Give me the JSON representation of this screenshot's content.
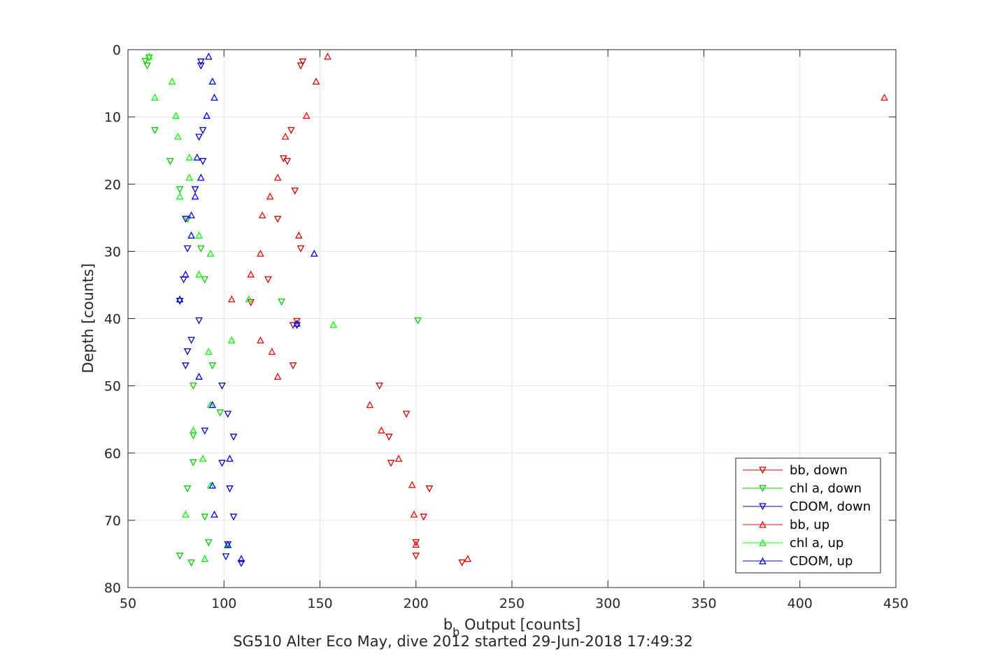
{
  "chart_data": {
    "type": "scatter",
    "xlabel": "b",
    "xlabel_sub": "b",
    "xlabel_rest": " Output [counts]",
    "ylabel": "Depth [counts]",
    "caption": "SG510 Alter Eco May, dive 2012 started 29-Jun-2018 17:49:32",
    "xlim": [
      50,
      450
    ],
    "ylim": [
      0,
      80
    ],
    "y_reversed": true,
    "xticks": [
      "50",
      "100",
      "150",
      "200",
      "250",
      "300",
      "350",
      "400",
      "450"
    ],
    "yticks": [
      "0",
      "10",
      "20",
      "30",
      "40",
      "50",
      "60",
      "70",
      "80"
    ],
    "grid": true,
    "legend_position": "bottom-right",
    "series": [
      {
        "name": "bb, down",
        "color": "#d40000",
        "marker": "triangle-down",
        "points": [
          [
            141,
            1.8
          ],
          [
            140,
            2.4
          ],
          [
            135,
            12
          ],
          [
            131,
            16.2
          ],
          [
            133,
            16.6
          ],
          [
            137,
            21
          ],
          [
            128,
            25.2
          ],
          [
            140,
            29.6
          ],
          [
            123,
            34.2
          ],
          [
            114,
            37.6
          ],
          [
            138,
            40.4
          ],
          [
            136,
            41
          ],
          [
            136,
            47
          ],
          [
            181,
            50
          ],
          [
            195,
            54.2
          ],
          [
            186,
            57.6
          ],
          [
            187,
            61.5
          ],
          [
            207,
            65.3
          ],
          [
            204,
            69.5
          ],
          [
            200,
            73.3
          ],
          [
            200,
            75.3
          ],
          [
            224,
            76.3
          ]
        ]
      },
      {
        "name": "chl a, down",
        "color": "#00cc00",
        "marker": "triangle-down",
        "points": [
          [
            61,
            1.2
          ],
          [
            59,
            1.7
          ],
          [
            60,
            2.4
          ],
          [
            64,
            12
          ],
          [
            72,
            16.6
          ],
          [
            77,
            20.8
          ],
          [
            81,
            25.2
          ],
          [
            88,
            29.6
          ],
          [
            90,
            34.2
          ],
          [
            130,
            37.5
          ],
          [
            201,
            40.3
          ],
          [
            94,
            47
          ],
          [
            84,
            50
          ],
          [
            98,
            54
          ],
          [
            84,
            57.4
          ],
          [
            84,
            61.4
          ],
          [
            81,
            65.3
          ],
          [
            90,
            69.5
          ],
          [
            92,
            73.3
          ],
          [
            77,
            75.3
          ],
          [
            83,
            76.3
          ]
        ]
      },
      {
        "name": "CDOM, down",
        "color": "#0000cc",
        "marker": "triangle-down",
        "points": [
          [
            88,
            1.8
          ],
          [
            88,
            2.4
          ],
          [
            89,
            12
          ],
          [
            87,
            13
          ],
          [
            89,
            16.6
          ],
          [
            85,
            20.8
          ],
          [
            80,
            25.2
          ],
          [
            81,
            29.6
          ],
          [
            79,
            34.2
          ],
          [
            77,
            37.4
          ],
          [
            87,
            40.3
          ],
          [
            138,
            41
          ],
          [
            83,
            43.2
          ],
          [
            81,
            44.9
          ],
          [
            80,
            47
          ],
          [
            99,
            50
          ],
          [
            102,
            54.2
          ],
          [
            90,
            56.7
          ],
          [
            105,
            57.6
          ],
          [
            99,
            61.5
          ],
          [
            103,
            65.3
          ],
          [
            105,
            69.5
          ],
          [
            102,
            73.6
          ],
          [
            101,
            75.4
          ],
          [
            109,
            76.4
          ]
        ]
      },
      {
        "name": "bb, up",
        "color": "#ff0000",
        "marker": "triangle-up",
        "points": [
          [
            154,
            1
          ],
          [
            148,
            4.7
          ],
          [
            444,
            7.1
          ],
          [
            143,
            9.8
          ],
          [
            132,
            12.9
          ],
          [
            128,
            19
          ],
          [
            124,
            21.8
          ],
          [
            120,
            24.6
          ],
          [
            139,
            27.6
          ],
          [
            119,
            30.3
          ],
          [
            114,
            33.4
          ],
          [
            104,
            37.1
          ],
          [
            119,
            43.2
          ],
          [
            125,
            44.9
          ],
          [
            128,
            48.6
          ],
          [
            176,
            52.8
          ],
          [
            182,
            56.6
          ],
          [
            191,
            60.8
          ],
          [
            198,
            64.7
          ],
          [
            199,
            69.1
          ],
          [
            200,
            73.6
          ],
          [
            227,
            75.7
          ]
        ]
      },
      {
        "name": "chl a, up",
        "color": "#00ff00",
        "marker": "triangle-up",
        "points": [
          [
            61,
            1
          ],
          [
            73,
            4.7
          ],
          [
            64,
            7.1
          ],
          [
            75,
            9.8
          ],
          [
            76,
            12.9
          ],
          [
            82,
            16
          ],
          [
            82,
            19
          ],
          [
            77,
            21.8
          ],
          [
            87,
            27.6
          ],
          [
            93,
            30.3
          ],
          [
            87,
            33.4
          ],
          [
            113,
            37.1
          ],
          [
            157,
            40.9
          ],
          [
            104,
            43.2
          ],
          [
            92,
            44.9
          ],
          [
            93,
            52.8
          ],
          [
            84,
            56.6
          ],
          [
            89,
            60.8
          ],
          [
            93,
            64.8
          ],
          [
            80,
            69.1
          ],
          [
            102,
            73.7
          ],
          [
            90,
            75.7
          ]
        ]
      },
      {
        "name": "CDOM, up",
        "color": "#0000ff",
        "marker": "triangle-up",
        "points": [
          [
            92,
            1
          ],
          [
            94,
            4.7
          ],
          [
            95,
            7.1
          ],
          [
            91,
            9.8
          ],
          [
            86,
            16
          ],
          [
            88,
            19
          ],
          [
            85,
            21.8
          ],
          [
            83,
            24.6
          ],
          [
            83,
            27.6
          ],
          [
            147,
            30.3
          ],
          [
            80,
            33.4
          ],
          [
            77,
            37.1
          ],
          [
            138,
            40.7
          ],
          [
            87,
            48.6
          ],
          [
            94,
            52.8
          ],
          [
            103,
            60.8
          ],
          [
            94,
            64.8
          ],
          [
            95,
            69.1
          ],
          [
            102,
            73.6
          ],
          [
            109,
            75.7
          ]
        ]
      }
    ]
  }
}
